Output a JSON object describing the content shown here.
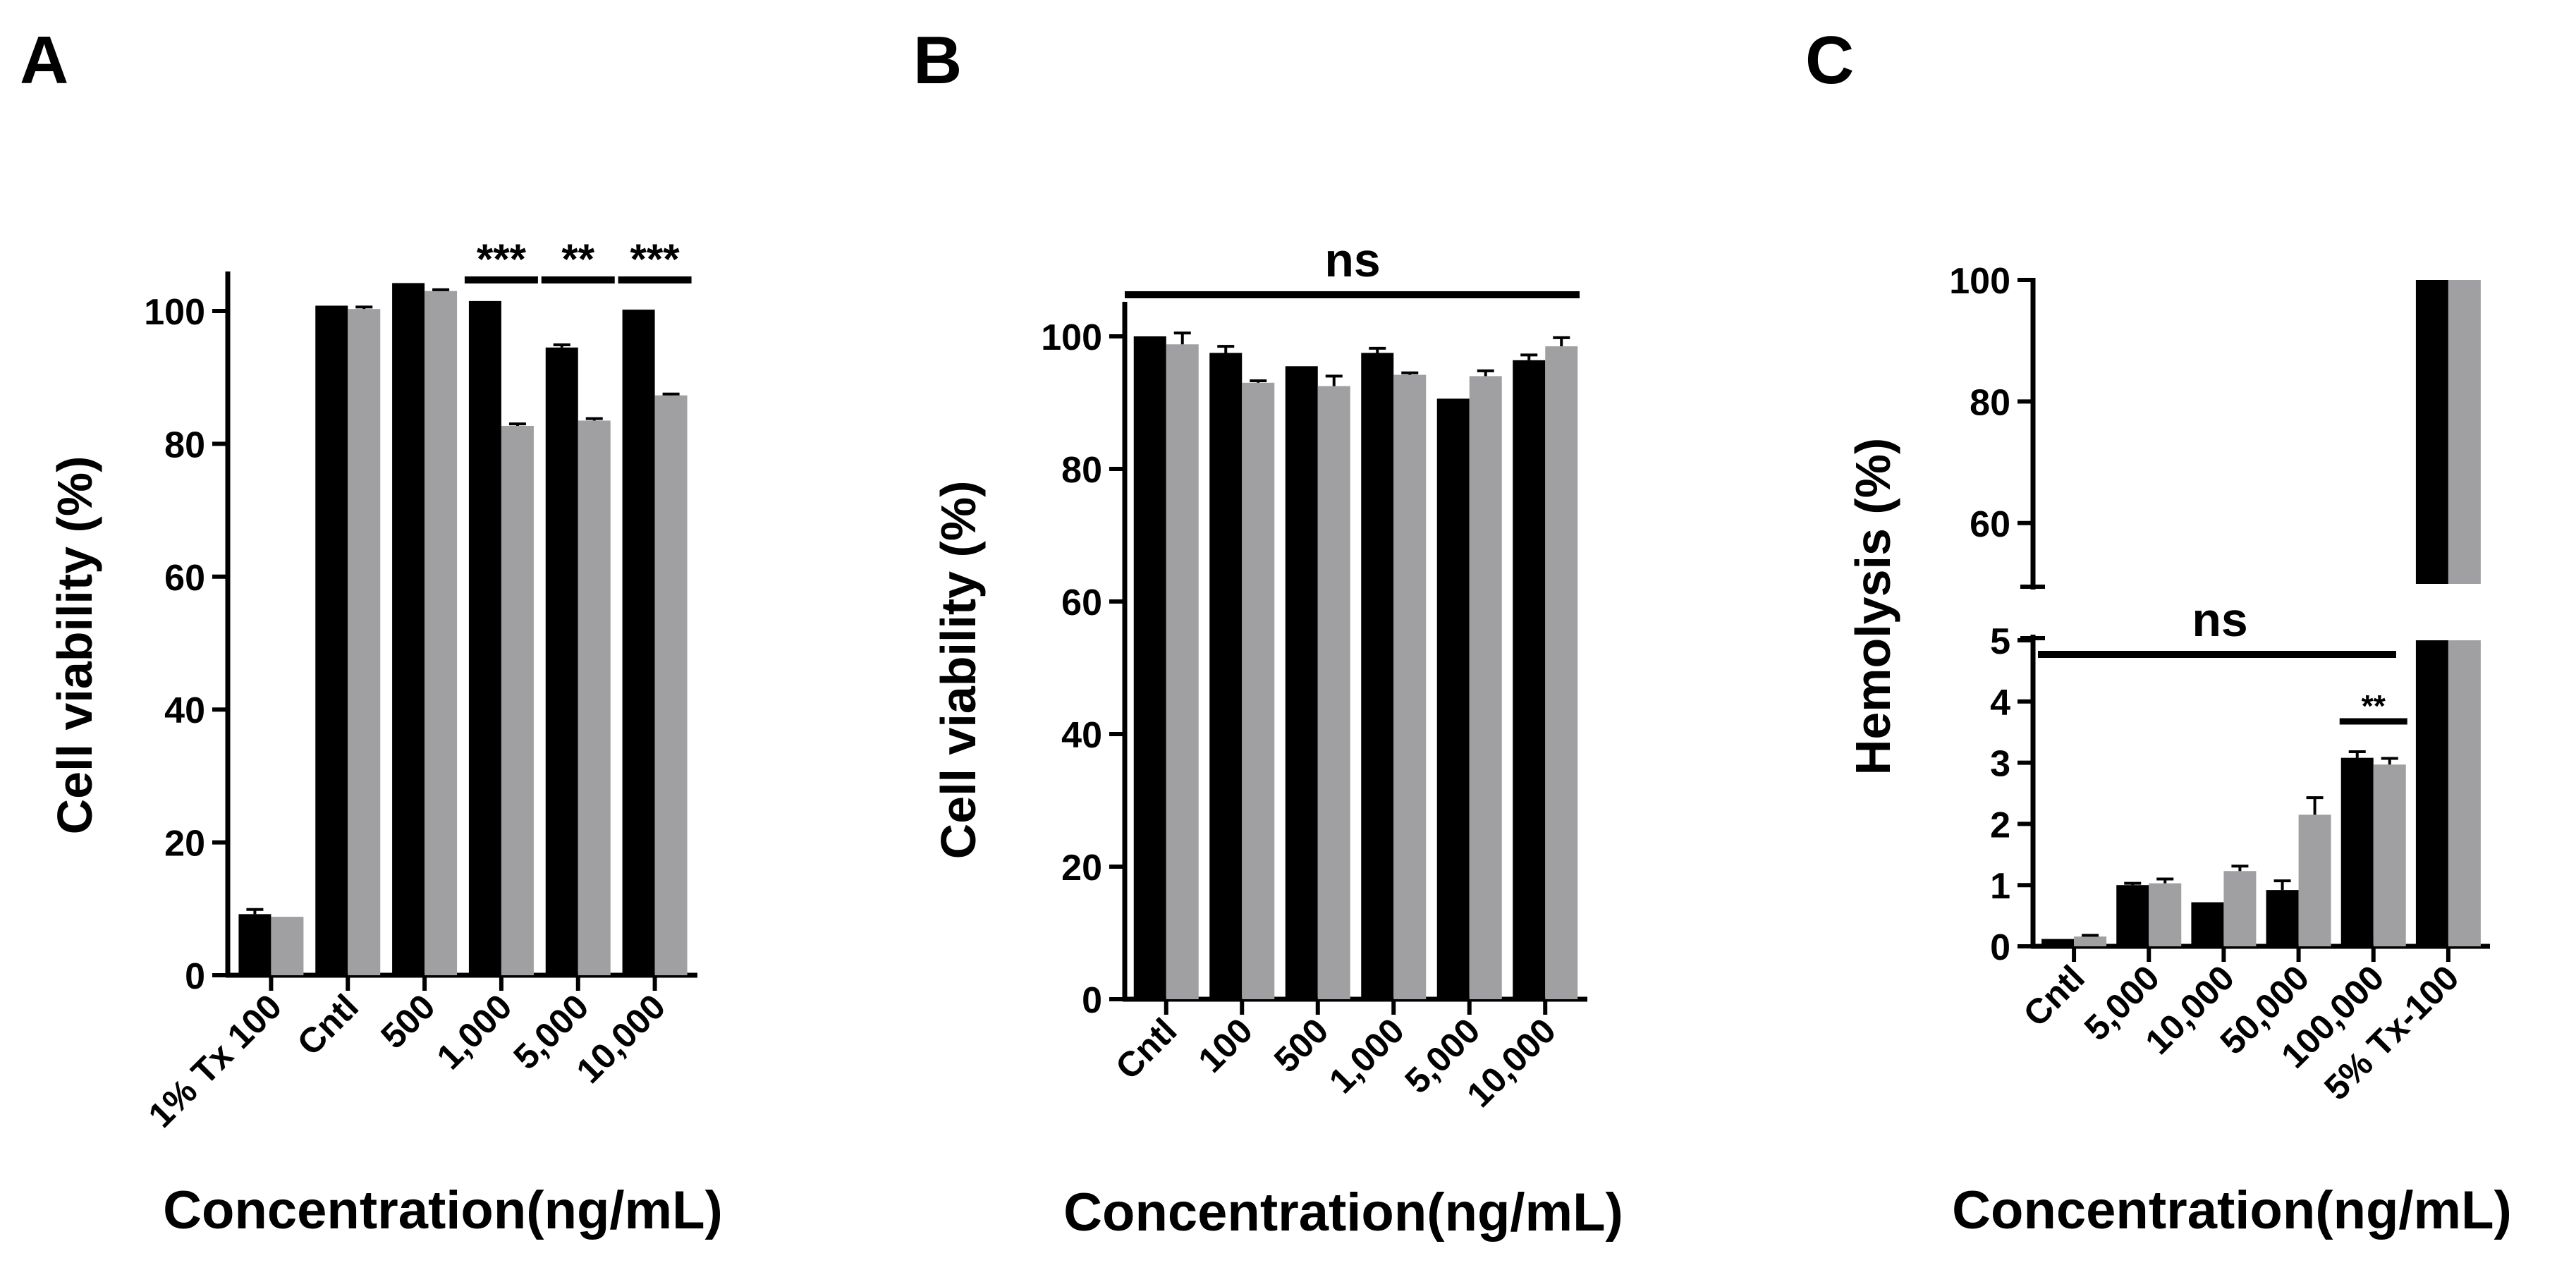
{
  "colors": {
    "series1": "#000000",
    "series2": "#a0a0a2",
    "axis": "#000000"
  },
  "chart_data": [
    {
      "panel_label": "A",
      "type": "bar",
      "xlabel": "Concentration(ng/mL)",
      "ylabel": "Cell viability (%)",
      "ylim": [
        0,
        105
      ],
      "yticks": [
        "0",
        "20",
        "40",
        "60",
        "80",
        "100"
      ],
      "categories": [
        "1% Tx 100",
        "Cntl",
        "500",
        "1,000",
        "5,000",
        "10,000"
      ],
      "series": [
        {
          "name": "series 1 (black)",
          "values": [
            9.2,
            100.8,
            104.2,
            101.5,
            94.5,
            100.2
          ],
          "errors": [
            0.7,
            0,
            0,
            0,
            0.4,
            0
          ]
        },
        {
          "name": "series 2 (grey)",
          "values": [
            8.8,
            100.3,
            103.0,
            82.7,
            83.5,
            87.3
          ],
          "errors": [
            0,
            0.3,
            0.2,
            0.3,
            0.3,
            0.2
          ]
        }
      ],
      "annotations": [
        {
          "category": "1,000",
          "text": "***"
        },
        {
          "category": "5,000",
          "text": "**"
        },
        {
          "category": "10,000",
          "text": "***"
        }
      ]
    },
    {
      "panel_label": "B",
      "type": "bar",
      "xlabel": "Concentration(ng/mL)",
      "ylabel": "Cell viability (%)",
      "ylim": [
        0,
        100
      ],
      "yticks": [
        "0",
        "20",
        "40",
        "60",
        "80",
        "100"
      ],
      "categories": [
        "Cntl",
        "100",
        "500",
        "1,000",
        "5,000",
        "10,000"
      ],
      "series": [
        {
          "name": "series 1 (black)",
          "values": [
            100.0,
            97.5,
            95.5,
            97.5,
            90.6,
            96.4
          ],
          "errors": [
            0,
            1.0,
            0,
            0.7,
            0,
            0.8
          ]
        },
        {
          "name": "series 2 (grey)",
          "values": [
            98.8,
            93.0,
            92.5,
            94.2,
            94.0,
            98.5
          ],
          "errors": [
            1.7,
            0.3,
            1.5,
            0.3,
            0.8,
            1.3
          ]
        }
      ],
      "annotations": [
        {
          "span": "all",
          "text": "ns"
        }
      ]
    },
    {
      "panel_label": "C",
      "type": "bar",
      "xlabel": "Concentration(ng/mL)",
      "ylabel": "Hemolysis (%)",
      "y_axis_break": {
        "lower_range": [
          0,
          5
        ],
        "upper_range": [
          50,
          100
        ]
      },
      "yticks_lower": [
        "0",
        "1",
        "2",
        "3",
        "4",
        "5"
      ],
      "yticks_upper": [
        "60",
        "80",
        "100"
      ],
      "categories": [
        "Cntl",
        "5,000",
        "10,000",
        "50,000",
        "100,000",
        "5% Tx-100"
      ],
      "series": [
        {
          "name": "series 1 (black)",
          "values": [
            0.12,
            1.0,
            0.72,
            0.92,
            3.08,
            100
          ],
          "errors": [
            0,
            0.03,
            0,
            0.15,
            0.1,
            0
          ]
        },
        {
          "name": "series 2 (grey)",
          "values": [
            0.16,
            1.03,
            1.23,
            2.15,
            2.97,
            100
          ],
          "errors": [
            0.02,
            0.07,
            0.08,
            0.28,
            0.1,
            0
          ]
        }
      ],
      "annotations": [
        {
          "span": "Cntl-100,000",
          "text": "ns"
        },
        {
          "category": "100,000",
          "text": "**"
        }
      ]
    }
  ]
}
